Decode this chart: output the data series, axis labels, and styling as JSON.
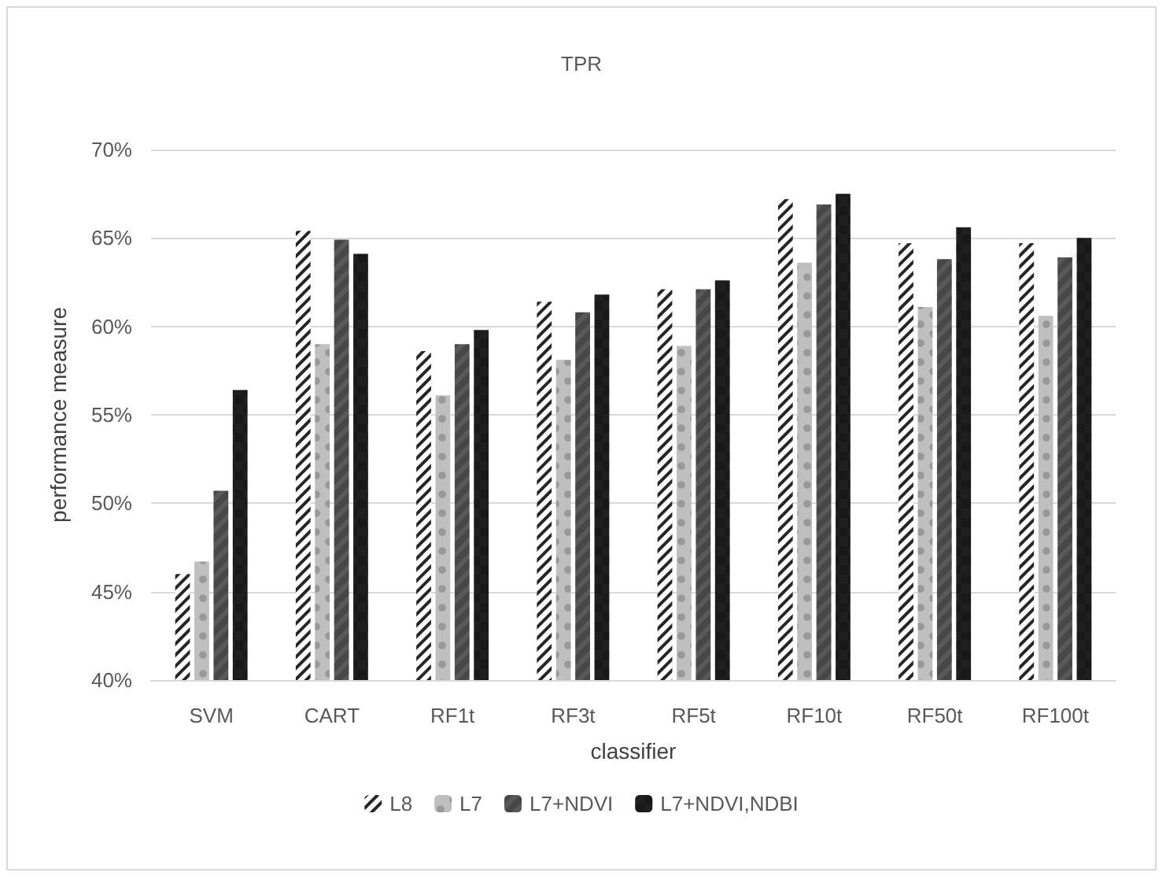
{
  "chart_data": {
    "type": "bar",
    "title": "TPR",
    "xlabel": "classifier",
    "ylabel": "performance measure",
    "categories": [
      "SVM",
      "CART",
      "RF1t",
      "RF3t",
      "RF5t",
      "RF10t",
      "RF50t",
      "RF100t"
    ],
    "series": [
      {
        "name": "L8",
        "color": "#262626",
        "values": [
          46.0,
          65.4,
          58.6,
          61.4,
          62.1,
          67.2,
          64.7,
          64.7
        ]
      },
      {
        "name": "L7",
        "color": "#bfbfbf",
        "values": [
          46.7,
          59.0,
          56.1,
          58.1,
          58.9,
          63.6,
          61.1,
          60.6
        ]
      },
      {
        "name": "L7+NDVI",
        "color": "#595959",
        "values": [
          50.7,
          64.9,
          59.0,
          60.8,
          62.1,
          66.9,
          63.8,
          63.9
        ]
      },
      {
        "name": "L7+NDVI,NDBI",
        "color": "#1f1f1f",
        "values": [
          56.4,
          64.1,
          59.8,
          61.8,
          62.6,
          67.5,
          65.6,
          65.0
        ]
      }
    ],
    "ylim": [
      40,
      70
    ],
    "yticks": [
      {
        "value": 40,
        "label": "40%"
      },
      {
        "value": 45,
        "label": "45%"
      },
      {
        "value": 50,
        "label": "50%"
      },
      {
        "value": 55,
        "label": "55%"
      },
      {
        "value": 60,
        "label": "60%"
      },
      {
        "value": 65,
        "label": "65%"
      },
      {
        "value": 70,
        "label": "70%"
      }
    ],
    "grid": "y",
    "legend": "bottom"
  }
}
